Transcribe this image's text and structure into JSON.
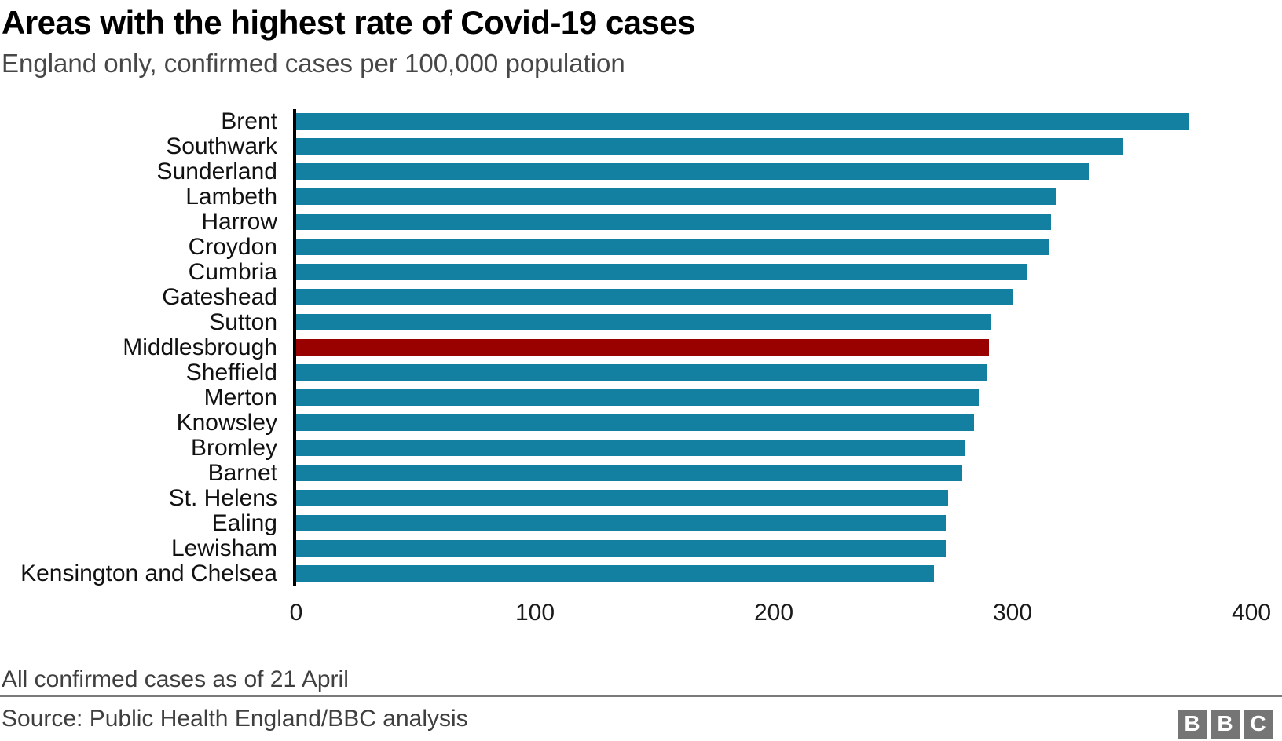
{
  "header": {
    "title": "Areas with the highest rate of Covid-19 cases",
    "subtitle": "England only, confirmed cases per 100,000 population"
  },
  "chart_data": {
    "type": "bar",
    "orientation": "horizontal",
    "title": "Areas with the highest rate of Covid-19 cases",
    "xlabel": "",
    "ylabel": "",
    "categories": [
      "Brent",
      "Southwark",
      "Sunderland",
      "Lambeth",
      "Harrow",
      "Croydon",
      "Cumbria",
      "Gateshead",
      "Sutton",
      "Middlesbrough",
      "Sheffield",
      "Merton",
      "Knowsley",
      "Bromley",
      "Barnet",
      "St. Helens",
      "Ealing",
      "Lewisham",
      "Kensington and Chelsea"
    ],
    "values": [
      374,
      346,
      332,
      318,
      316,
      315,
      306,
      300,
      291,
      290,
      289,
      286,
      284,
      280,
      279,
      273,
      272,
      272,
      267
    ],
    "xlim": [
      0,
      400
    ],
    "x_ticks": [
      0,
      100,
      200,
      300,
      400
    ],
    "grid": false,
    "legend": "none",
    "bar_color": "#1380a1",
    "highlight": {
      "category": "Middlesbrough",
      "index": 9,
      "color": "#990000"
    },
    "axis_color": "#000000"
  },
  "footer": {
    "note": "All confirmed cases as of 21 April",
    "source": "Source: Public Health England/BBC analysis",
    "logo_letters": [
      "B",
      "B",
      "C"
    ],
    "logo_color": "#757575"
  }
}
